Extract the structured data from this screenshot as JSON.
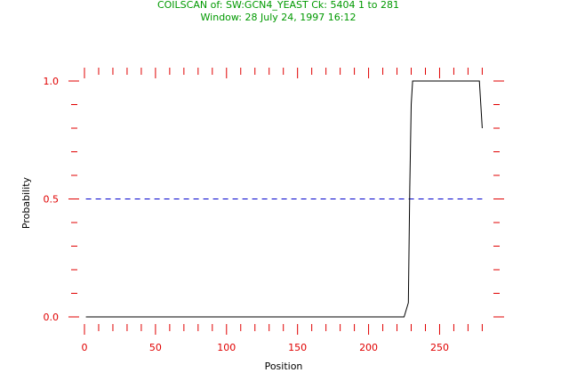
{
  "header": {
    "line1": "COILSCAN of: SW:GCN4_YEAST Ck: 5404 1 to 281",
    "line2": "Window: 28 July 24, 1997 16:12"
  },
  "colors": {
    "header": "#009900",
    "axis": "#e00000",
    "curve": "#000000",
    "threshold": "#0000cc"
  },
  "chart_data": {
    "type": "line",
    "title": "COILSCAN of: SW:GCN4_YEAST Ck: 5404 1 to 281",
    "subtitle": "Window: 28 July 24, 1997 16:12",
    "xlabel": "Position",
    "ylabel": "Probability",
    "xlim": [
      0,
      281
    ],
    "ylim": [
      0,
      1
    ],
    "x_ticks": [
      0,
      50,
      100,
      150,
      200,
      250
    ],
    "x_tick_labels": [
      "0",
      "50",
      "100",
      "150",
      "200",
      "250"
    ],
    "y_ticks": [
      0,
      0.5,
      1
    ],
    "y_tick_labels": [
      "0.0",
      "0.5",
      "1.0"
    ],
    "grid": false,
    "series": [
      {
        "style": "solid",
        "x": [
          1,
          225,
          228,
          229,
          230,
          231,
          233,
          278,
          280
        ],
        "y": [
          0.0,
          0.0,
          0.06,
          0.55,
          0.9,
          1.0,
          1.0,
          1.0,
          0.8
        ]
      }
    ],
    "reference_lines": [
      {
        "style": "dashed",
        "y": 0.5,
        "x": [
          1,
          280
        ]
      }
    ]
  }
}
